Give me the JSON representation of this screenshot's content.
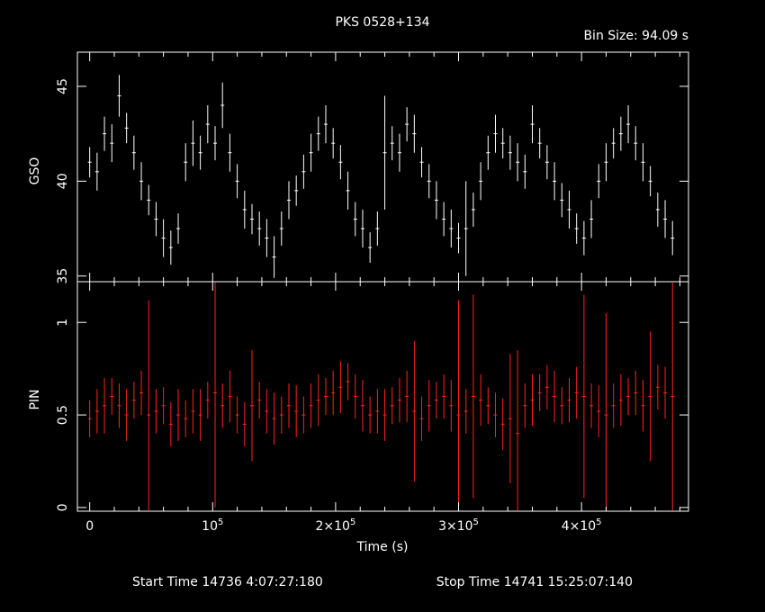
{
  "header": {
    "title": "PKS 0528+134",
    "bin_size": "Bin Size: 94.09 s"
  },
  "footer": {
    "start_time": "Start Time 14736  4:07:27:180",
    "stop_time": "Stop Time 14741 15:25:07:140"
  },
  "colors": {
    "background": "#000000",
    "axes": "#ffffff",
    "gso_series": "#ffffff",
    "pin_series": "#ff2020"
  },
  "chart_data": [
    {
      "type": "scatter",
      "panel": "top",
      "title": "PKS 0528+134",
      "ylabel": "GSO",
      "xlabel": "",
      "xlim": [
        -10000,
        487000
      ],
      "ylim": [
        34.7,
        46.8
      ],
      "y_ticks": [
        35,
        40,
        45
      ],
      "y_tick_labels": [
        "35",
        "40",
        "45"
      ],
      "error_bars": true,
      "series": [
        {
          "x": [
            0,
            6000,
            12000,
            18000,
            24000,
            30000,
            36000,
            42000,
            48000,
            54000,
            60000,
            66000,
            72000,
            78000,
            84000,
            90000,
            96000,
            102000,
            108000,
            114000,
            120000,
            126000,
            132000,
            138000,
            144000,
            150000,
            156000,
            162000,
            168000,
            174000,
            180000,
            186000,
            192000,
            198000,
            204000,
            210000,
            216000,
            222000,
            228000,
            234000,
            240000,
            246000,
            252000,
            258000,
            264000,
            270000,
            276000,
            282000,
            288000,
            294000,
            300000,
            306000,
            312000,
            318000,
            324000,
            330000,
            336000,
            342000,
            348000,
            354000,
            360000,
            366000,
            372000,
            378000,
            384000,
            390000,
            396000,
            402000,
            408000,
            414000,
            420000,
            426000,
            432000,
            438000,
            444000,
            450000,
            456000,
            462000,
            468000,
            474000
          ],
          "y": [
            41.0,
            40.5,
            42.5,
            42.0,
            44.5,
            42.8,
            41.5,
            40.0,
            39.0,
            38.0,
            37.0,
            36.5,
            37.5,
            41.0,
            42.0,
            41.5,
            43.0,
            42.0,
            44.0,
            41.5,
            40.0,
            38.5,
            38.0,
            37.5,
            37.0,
            36.0,
            37.5,
            39.0,
            39.5,
            40.5,
            41.5,
            42.5,
            43.0,
            42.0,
            41.0,
            39.5,
            38.0,
            37.5,
            36.5,
            37.5,
            41.5,
            42.0,
            41.5,
            43.0,
            42.5,
            41.0,
            40.0,
            39.0,
            38.0,
            37.5,
            37.0,
            37.5,
            38.5,
            40.0,
            41.5,
            42.5,
            42.0,
            41.5,
            41.0,
            40.5,
            43.0,
            42.0,
            41.0,
            40.0,
            39.0,
            38.5,
            37.5,
            37.0,
            38.0,
            40.0,
            41.0,
            42.0,
            42.5,
            43.0,
            42.0,
            41.0,
            40.0,
            38.5,
            38.0,
            37.0
          ],
          "yerr": [
            0.8,
            1.0,
            0.9,
            1.0,
            1.1,
            0.8,
            0.9,
            1.0,
            0.8,
            0.9,
            1.0,
            0.9,
            0.8,
            1.0,
            1.2,
            0.9,
            1.0,
            0.9,
            1.2,
            1.0,
            0.9,
            1.0,
            0.8,
            0.9,
            1.0,
            1.1,
            0.9,
            1.0,
            0.8,
            0.9,
            1.0,
            0.9,
            1.0,
            0.8,
            0.9,
            1.0,
            0.9,
            1.0,
            0.8,
            0.9,
            3.0,
            0.9,
            1.0,
            0.9,
            1.0,
            0.8,
            0.9,
            1.0,
            0.9,
            1.0,
            0.8,
            2.5,
            0.9,
            1.0,
            0.9,
            1.0,
            0.8,
            0.9,
            1.0,
            0.9,
            1.0,
            0.8,
            0.9,
            1.0,
            0.9,
            1.0,
            0.8,
            0.9,
            1.0,
            0.9,
            1.0,
            0.8,
            0.9,
            1.0,
            0.9,
            1.0,
            0.8,
            0.9,
            1.0,
            0.9
          ]
        }
      ]
    },
    {
      "type": "scatter",
      "panel": "bottom",
      "ylabel": "PIN",
      "xlabel": "Time (s)",
      "xlim": [
        -10000,
        487000
      ],
      "ylim": [
        -0.02,
        1.22
      ],
      "y_ticks": [
        0,
        0.5,
        1
      ],
      "y_tick_labels": [
        "0",
        "0.5",
        "1"
      ],
      "x_ticks": [
        0,
        100000,
        200000,
        300000,
        400000
      ],
      "x_tick_labels": [
        {
          "base": "0",
          "exp": ""
        },
        {
          "base": "10",
          "exp": "5"
        },
        {
          "base": "2×10",
          "exp": "5"
        },
        {
          "base": "3×10",
          "exp": "5"
        },
        {
          "base": "4×10",
          "exp": "5"
        }
      ],
      "error_bars": true,
      "series": [
        {
          "x": [
            0,
            6000,
            12000,
            18000,
            24000,
            30000,
            36000,
            42000,
            48000,
            54000,
            60000,
            66000,
            72000,
            78000,
            84000,
            90000,
            96000,
            102000,
            108000,
            114000,
            120000,
            126000,
            132000,
            138000,
            144000,
            150000,
            156000,
            162000,
            168000,
            174000,
            180000,
            186000,
            192000,
            198000,
            204000,
            210000,
            216000,
            222000,
            228000,
            234000,
            240000,
            246000,
            252000,
            258000,
            264000,
            270000,
            276000,
            282000,
            288000,
            294000,
            300000,
            306000,
            312000,
            318000,
            324000,
            330000,
            336000,
            342000,
            348000,
            354000,
            360000,
            366000,
            372000,
            378000,
            384000,
            390000,
            396000,
            402000,
            408000,
            414000,
            420000,
            426000,
            432000,
            438000,
            444000,
            450000,
            456000,
            462000,
            468000,
            474000
          ],
          "y": [
            0.48,
            0.52,
            0.55,
            0.6,
            0.55,
            0.5,
            0.58,
            0.62,
            0.5,
            0.52,
            0.55,
            0.45,
            0.5,
            0.48,
            0.52,
            0.5,
            0.58,
            0.62,
            0.55,
            0.6,
            0.5,
            0.45,
            0.55,
            0.58,
            0.52,
            0.48,
            0.5,
            0.55,
            0.52,
            0.5,
            0.55,
            0.58,
            0.6,
            0.62,
            0.65,
            0.68,
            0.6,
            0.55,
            0.5,
            0.52,
            0.5,
            0.55,
            0.58,
            0.6,
            0.52,
            0.48,
            0.55,
            0.58,
            0.6,
            0.55,
            0.5,
            0.52,
            0.6,
            0.58,
            0.55,
            0.5,
            0.45,
            0.48,
            0.4,
            0.55,
            0.58,
            0.62,
            0.65,
            0.6,
            0.55,
            0.58,
            0.62,
            0.6,
            0.55,
            0.52,
            0.5,
            0.55,
            0.58,
            0.6,
            0.62,
            0.55,
            0.6,
            0.65,
            0.62,
            0.6
          ],
          "yerr": [
            0.1,
            0.12,
            0.15,
            0.1,
            0.12,
            0.14,
            0.1,
            0.12,
            0.62,
            0.12,
            0.1,
            0.12,
            0.14,
            0.1,
            0.12,
            0.14,
            0.1,
            0.62,
            0.12,
            0.14,
            0.1,
            0.12,
            0.3,
            0.1,
            0.12,
            0.14,
            0.1,
            0.12,
            0.14,
            0.1,
            0.12,
            0.14,
            0.1,
            0.12,
            0.14,
            0.1,
            0.12,
            0.14,
            0.1,
            0.12,
            0.14,
            0.1,
            0.12,
            0.14,
            0.38,
            0.12,
            0.14,
            0.1,
            0.12,
            0.14,
            0.62,
            0.12,
            0.55,
            0.14,
            0.1,
            0.12,
            0.14,
            0.35,
            0.45,
            0.12,
            0.14,
            0.1,
            0.12,
            0.14,
            0.1,
            0.12,
            0.14,
            0.55,
            0.12,
            0.14,
            0.55,
            0.12,
            0.14,
            0.1,
            0.12,
            0.14,
            0.35,
            0.12,
            0.14,
            0.62
          ]
        }
      ]
    }
  ]
}
